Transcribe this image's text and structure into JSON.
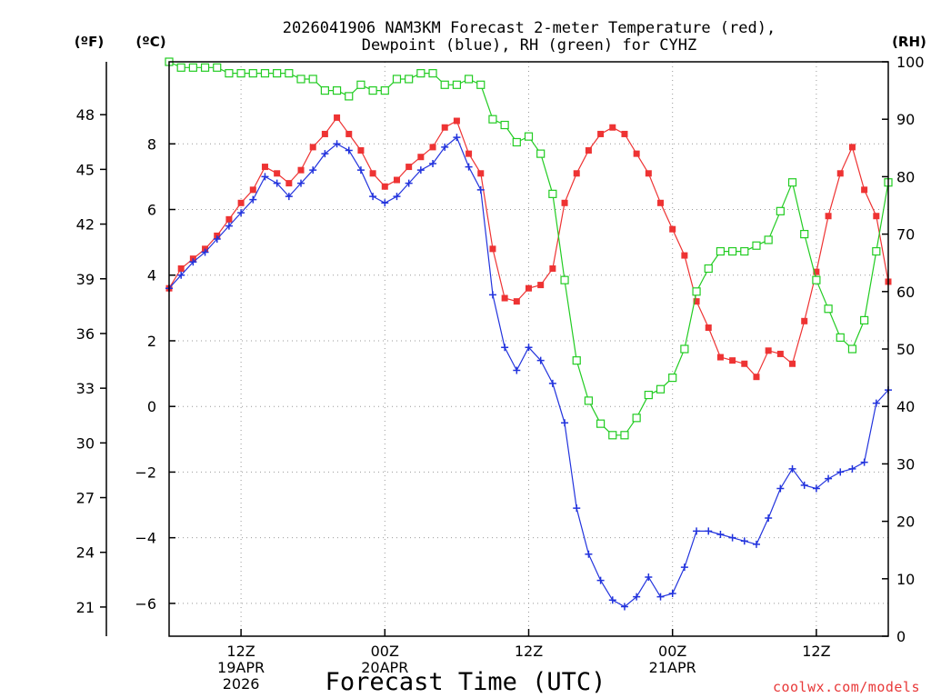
{
  "chart_data": {
    "type": "line",
    "title_line1": "2026041906 NAM3KM Forecast 2-meter Temperature (red),",
    "title_line2": "Dewpoint (blue), RH (green) for CYHZ",
    "xlabel": "Forecast Time (UTC)",
    "credit": "coolwx.com/models",
    "units": {
      "left_outer": "(ºF)",
      "left_inner": "(ºC)",
      "right": "(RH)"
    },
    "x_range_hours": [
      0,
      60
    ],
    "celsius_axis": {
      "ylim": [
        -7,
        10.5
      ],
      "ticks": [
        -6,
        -4,
        -2,
        0,
        2,
        4,
        6,
        8
      ],
      "tick_labels": [
        "−6",
        "−4",
        "−2",
        "0",
        "2",
        "4",
        "6",
        "8"
      ]
    },
    "fahrenheit_axis": {
      "ticks": [
        21,
        24,
        27,
        30,
        33,
        36,
        39,
        42,
        45,
        48
      ],
      "tick_labels": [
        "21",
        "24",
        "27",
        "30",
        "33",
        "36",
        "39",
        "42",
        "45",
        "48"
      ]
    },
    "rh_axis": {
      "ylim": [
        0,
        100
      ],
      "ticks": [
        0,
        10,
        20,
        30,
        40,
        50,
        60,
        70,
        80,
        90,
        100
      ],
      "tick_labels": [
        "0",
        "10",
        "20",
        "30",
        "40",
        "50",
        "60",
        "70",
        "80",
        "90",
        "100"
      ]
    },
    "x_ticks": [
      {
        "hour": 6,
        "lines": [
          "12Z",
          "19APR",
          "2026"
        ]
      },
      {
        "hour": 18,
        "lines": [
          "00Z",
          "20APR"
        ]
      },
      {
        "hour": 30,
        "lines": [
          "12Z"
        ]
      },
      {
        "hour": 42,
        "lines": [
          "00Z",
          "21APR"
        ]
      },
      {
        "hour": 54,
        "lines": [
          "12Z"
        ]
      }
    ],
    "series": [
      {
        "name": "Temperature",
        "unit": "C",
        "color": "#ee3333",
        "marker": "filled-square",
        "values": [
          3.6,
          4.2,
          4.5,
          4.8,
          5.2,
          5.7,
          6.2,
          6.6,
          7.3,
          7.1,
          6.8,
          7.2,
          7.9,
          8.3,
          8.8,
          8.3,
          7.8,
          7.1,
          6.7,
          6.9,
          7.3,
          7.6,
          7.9,
          8.5,
          8.7,
          7.7,
          7.1,
          4.8,
          3.3,
          3.2,
          3.6,
          3.7,
          4.2,
          6.2,
          7.1,
          7.8,
          8.3,
          8.5,
          8.3,
          7.7,
          7.1,
          6.2,
          5.4,
          4.6,
          3.2,
          2.4,
          1.5,
          1.4,
          1.3,
          0.9,
          1.7,
          1.6,
          1.3,
          2.6,
          4.1,
          5.8,
          7.1,
          7.9,
          6.6,
          5.8,
          3.8
        ]
      },
      {
        "name": "Dewpoint",
        "unit": "C",
        "color": "#2233dd",
        "marker": "plus",
        "values": [
          3.6,
          4.0,
          4.4,
          4.7,
          5.1,
          5.5,
          5.9,
          6.3,
          7.0,
          6.8,
          6.4,
          6.8,
          7.2,
          7.7,
          8.0,
          7.8,
          7.2,
          6.4,
          6.2,
          6.4,
          6.8,
          7.2,
          7.4,
          7.9,
          8.2,
          7.3,
          6.6,
          3.4,
          1.8,
          1.1,
          1.8,
          1.4,
          0.7,
          -0.5,
          -3.1,
          -4.5,
          -5.3,
          -5.9,
          -6.1,
          -5.8,
          -5.2,
          -5.8,
          -5.7,
          -4.9,
          -3.8,
          -3.8,
          -3.9,
          -4.0,
          -4.1,
          -4.2,
          -3.4,
          -2.5,
          -1.9,
          -2.4,
          -2.5,
          -2.2,
          -2.0,
          -1.9,
          -1.7,
          0.1,
          0.5
        ]
      },
      {
        "name": "RH",
        "unit": "%",
        "color": "#22cc22",
        "marker": "open-square",
        "values": [
          100,
          99,
          99,
          99,
          99,
          98,
          98,
          98,
          98,
          98,
          98,
          97,
          97,
          95,
          95,
          94,
          96,
          95,
          95,
          97,
          97,
          98,
          98,
          96,
          96,
          97,
          96,
          90,
          89,
          86,
          87,
          84,
          77,
          62,
          48,
          41,
          37,
          35,
          35,
          38,
          42,
          43,
          45,
          50,
          60,
          64,
          67,
          67,
          67,
          68,
          69,
          74,
          79,
          70,
          62,
          57,
          52,
          50,
          55,
          67,
          79
        ]
      }
    ]
  }
}
